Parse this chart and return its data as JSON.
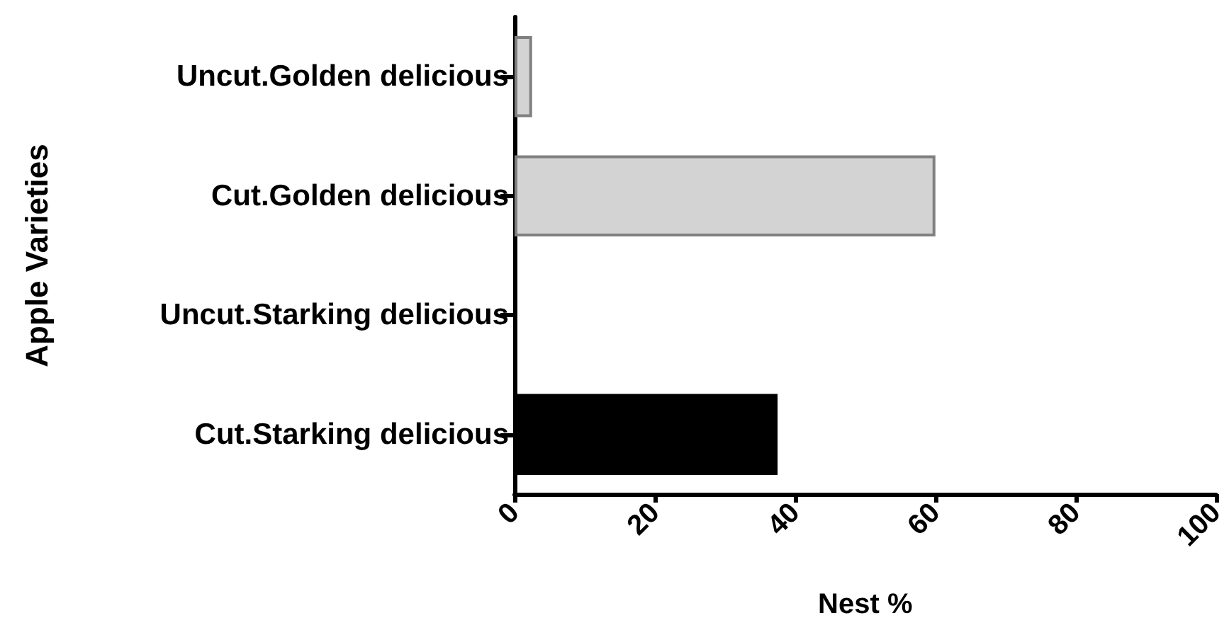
{
  "chart_data": {
    "type": "bar",
    "orientation": "horizontal",
    "xlabel": "Nest %",
    "ylabel": "Apple Varieties",
    "categories": [
      "Uncut.Golden delicious",
      "Cut.Golden delicious",
      "Uncut.Starking delicious",
      "Cut.Starking delicious"
    ],
    "values": [
      2.5,
      60,
      0,
      37.5
    ],
    "colors": [
      "#d3d3d3",
      "#d3d3d3",
      null,
      "#000000"
    ],
    "xlim": [
      0,
      100
    ],
    "xticks": [
      0,
      20,
      40,
      60,
      80,
      100
    ],
    "grid": false
  }
}
